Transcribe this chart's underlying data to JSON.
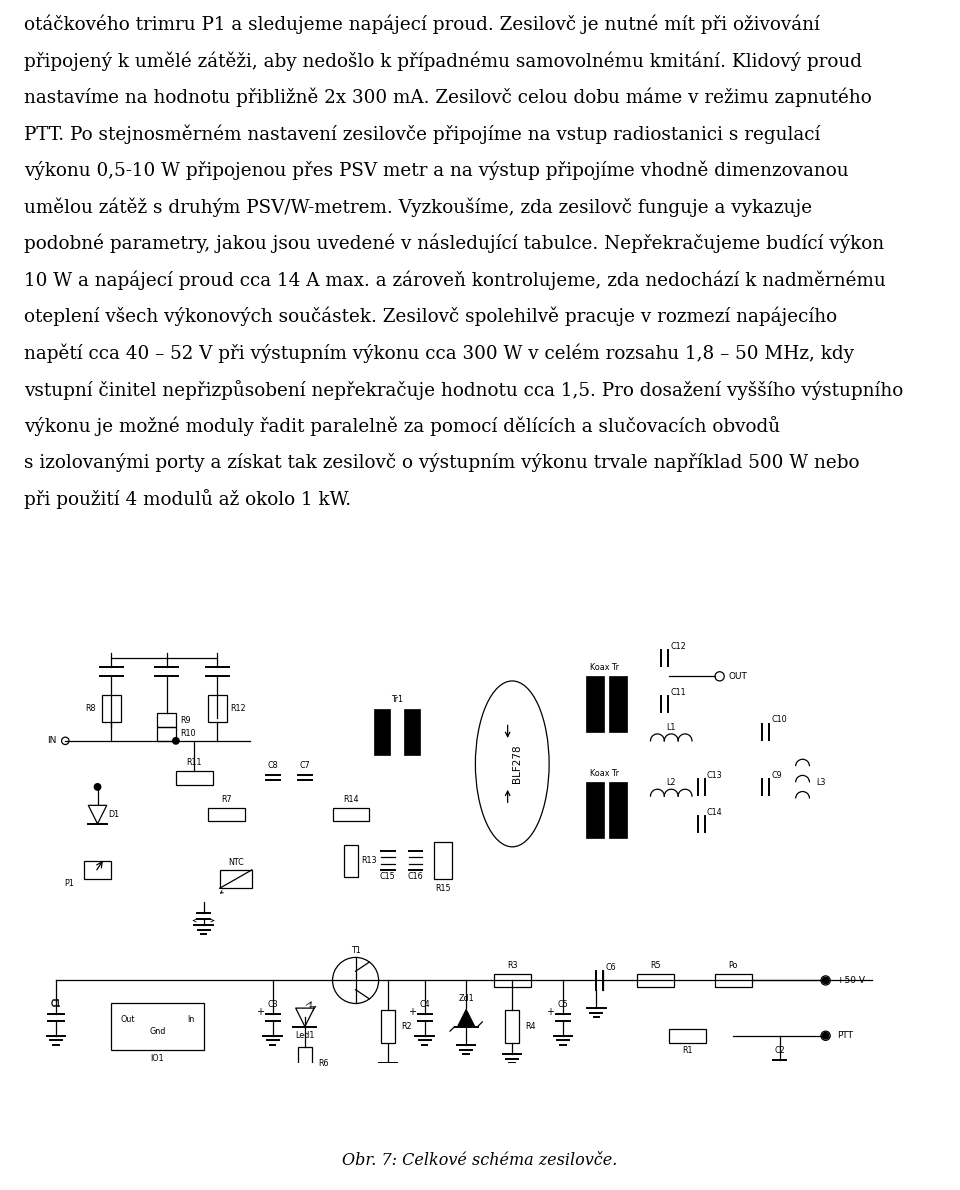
{
  "text_lines": [
    "otáčkového trimru P1 a sledujeme napájecí proud. Zesilovč je nutné mít při oživování",
    "připojený k umělé zátěži, aby nedošlo k případnému samovolnému kmitání. Klidový proud",
    "nastavíme na hodnotu přibližně 2x 300 mA. Zesilovč celou dobu máme v režimu zapnutého",
    "PTT. Po stejnosměrném nastavení zesilovče připojíme na vstup radiostanici s regulací",
    "výkonu 0,5-10 W připojenou přes PSV metr a na výstup připojíme vhodně dimenzovanou",
    "umělou zátěž s druhým PSV/W-metrem. Vyzkoušíme, zda zesilovč funguje a vykazuje",
    "podobné parametry, jakou jsou uvedené v následující tabulce. Nepřekračujeme budící výkon",
    "10 W a napájecí proud cca 14 A max. a zároveň kontrolujeme, zda nedochází k nadměrnému",
    "oteplení všech výkonových součástek. Zesilovč spolehilvě pracuje v rozmezí napájecího",
    "napětí cca 40 – 52 V při výstupním výkonu cca 300 W v celém rozsahu 1,8 – 50 MHz, kdy",
    "vstupní činitel nepřizpůsobení nepřekračuje hodnotu cca 1,5. Pro dosažení vyššího výstupního",
    "výkonu je možné moduly řadit paralelně za pomocí dělících a slučovacích obvodů",
    "s izolovanými porty a získat tak zesilovč o výstupním výkonu trvale například 500 W nebo",
    "při použití 4 modulů až okolo 1 kW."
  ],
  "caption": "Obr. 7: Celkové schéma zesilovče.",
  "bg": "#ffffff",
  "fg": "#000000"
}
